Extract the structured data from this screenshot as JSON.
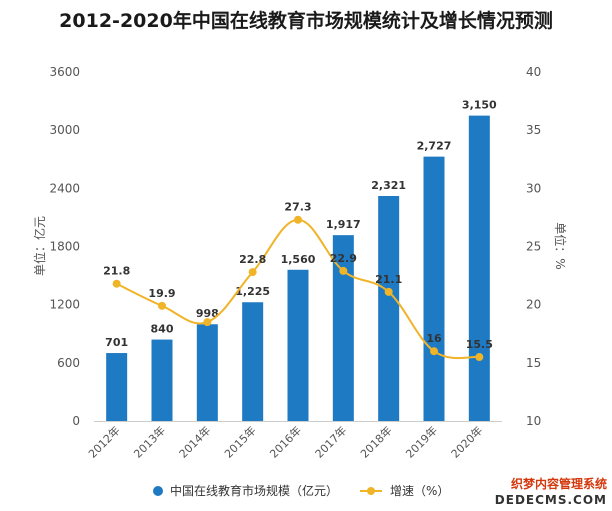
{
  "chart_data": {
    "type": "bar",
    "title": "2012-2020年中国在线教育市场规模统计及增长情况预测",
    "categories": [
      "2012年",
      "2013年",
      "2014年",
      "2015年",
      "2016年",
      "2017年",
      "2018年",
      "2019年",
      "2020年"
    ],
    "series": [
      {
        "name": "中国在线教育市场规模（亿元）",
        "type": "bar",
        "axis": "left",
        "color": "#1f7ac4",
        "values": [
          701,
          840,
          998,
          1225,
          1560,
          1917,
          2321,
          2727,
          3150
        ],
        "labels": [
          "701",
          "840",
          "998",
          "1,225",
          "1,560",
          "1,917",
          "2,321",
          "2,727",
          "3,150"
        ]
      },
      {
        "name": "增速（%）",
        "type": "line",
        "axis": "right",
        "color": "#f0b429",
        "values": [
          21.8,
          19.9,
          18.5,
          22.8,
          27.3,
          22.9,
          21.1,
          16,
          15.5
        ],
        "labels": [
          "21.8",
          "19.9",
          "",
          "22.8",
          "27.3",
          "22.9",
          "21.1",
          "16",
          "15.5"
        ]
      }
    ],
    "ylabel": "单位：亿元",
    "y2label": "单位：%",
    "ylim": [
      0,
      3600
    ],
    "y2lim": [
      10,
      40
    ],
    "yticks": [
      "0",
      "600",
      "1200",
      "1800",
      "2400",
      "3000",
      "3600"
    ],
    "y2ticks": [
      "10",
      "15",
      "20",
      "25",
      "30",
      "35",
      "40"
    ],
    "grid": false,
    "legend": "bottom"
  },
  "corner_text": {
    "line1": "织梦内容管理系统",
    "line2": "DEDECMS.COM"
  },
  "colors": {
    "bar": "#1f7ac4",
    "line": "#f0b429",
    "axis": "#cccccc"
  }
}
